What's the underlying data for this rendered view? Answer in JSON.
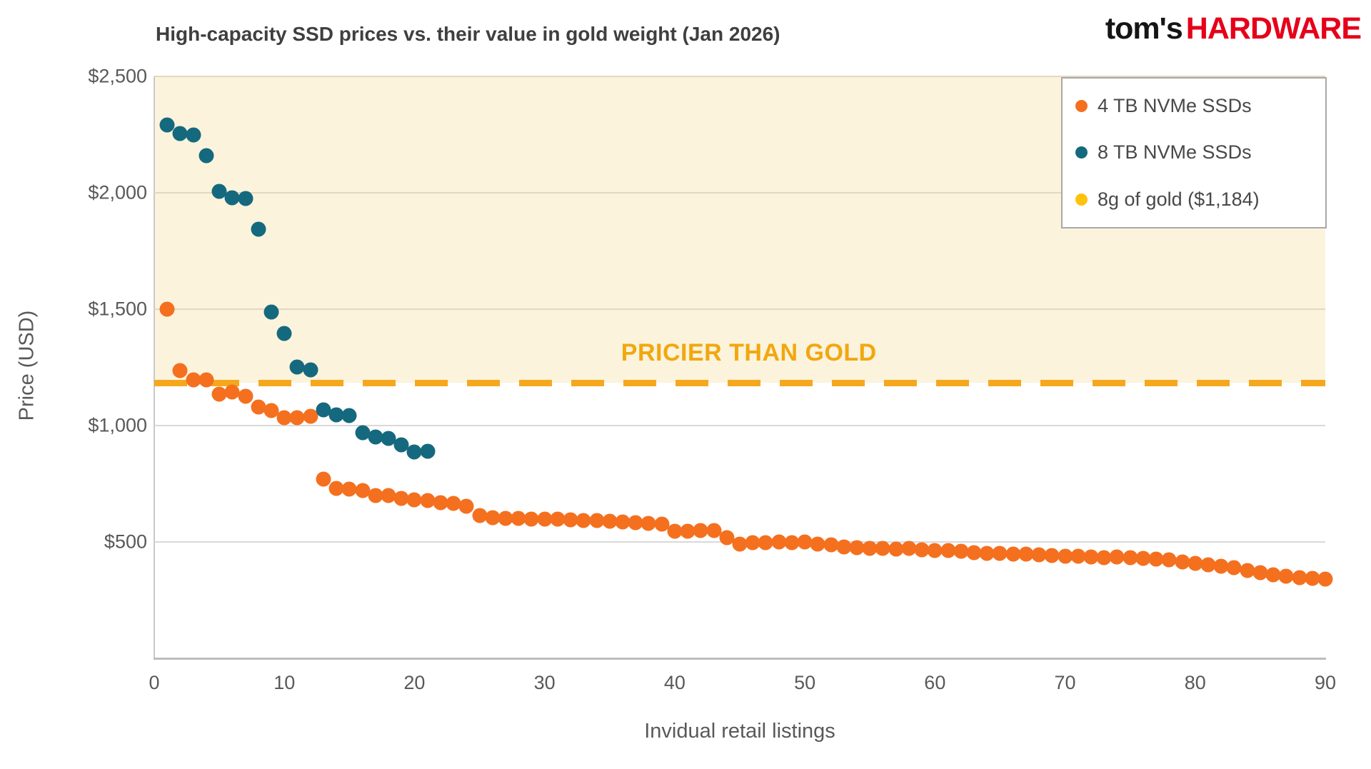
{
  "page": {
    "logo_part1": "tom's",
    "logo_part2": "HARDWARE",
    "logo_color": "#e60019"
  },
  "chart_data": {
    "type": "scatter",
    "title": "High-capacity SSD prices vs. their value in gold weight (Jan 2026)",
    "xlabel": "Invidual retail listings",
    "ylabel": "Price (USD)",
    "xlim": [
      0,
      90
    ],
    "ylim": [
      0,
      2500
    ],
    "x_ticks": [
      0,
      10,
      20,
      30,
      40,
      50,
      60,
      70,
      80,
      90
    ],
    "y_ticks": [
      {
        "label": "$2,500",
        "value": 2500
      },
      {
        "label": "$2,000",
        "value": 2000
      },
      {
        "label": "$1,500",
        "value": 1500
      },
      {
        "label": "$1,000",
        "value": 1000
      },
      {
        "label": "$500",
        "value": 500
      }
    ],
    "grid": "horizontal",
    "legend_position": "top-right",
    "x_encoding": "sequential listing index starting at 1 for each series",
    "series": [
      {
        "name": "4 TB NVMe SSDs",
        "color": "#f4701f",
        "values": [
          1500,
          1235,
          1195,
          1195,
          1135,
          1145,
          1125,
          1080,
          1065,
          1035,
          1035,
          1040,
          770,
          730,
          728,
          720,
          700,
          698,
          688,
          680,
          678,
          670,
          665,
          652,
          615,
          605,
          600,
          600,
          598,
          598,
          597,
          595,
          593,
          592,
          590,
          585,
          583,
          580,
          578,
          545,
          545,
          548,
          548,
          518,
          492,
          498,
          496,
          499,
          496,
          499,
          492,
          488,
          478,
          475,
          473,
          473,
          470,
          471,
          466,
          462,
          464,
          459,
          455,
          452,
          450,
          449,
          447,
          445,
          442,
          440,
          438,
          436,
          433,
          437,
          431,
          429,
          427,
          424,
          414,
          407,
          401,
          396,
          389,
          377,
          367,
          359,
          352,
          348,
          345,
          341
        ]
      },
      {
        "name": "8 TB NVMe SSDs",
        "color": "#15697e",
        "values": [
          2290,
          2255,
          2250,
          2160,
          2005,
          1980,
          1975,
          1845,
          1487,
          1397,
          1251,
          1240,
          1068,
          1045,
          1042,
          968,
          951,
          944,
          916,
          887,
          889
        ]
      }
    ],
    "reference_line": {
      "name": "8g of gold ($1,184)",
      "value": 1184,
      "style": "dashed",
      "color": "#f5a81e",
      "legend_dot_color": "#ffc20e"
    },
    "shaded_region": {
      "from": 1184,
      "to": 2500,
      "color": "#fbf3dc",
      "label": "PRICIER THAN GOLD",
      "label_color": "#f2a70e"
    }
  }
}
